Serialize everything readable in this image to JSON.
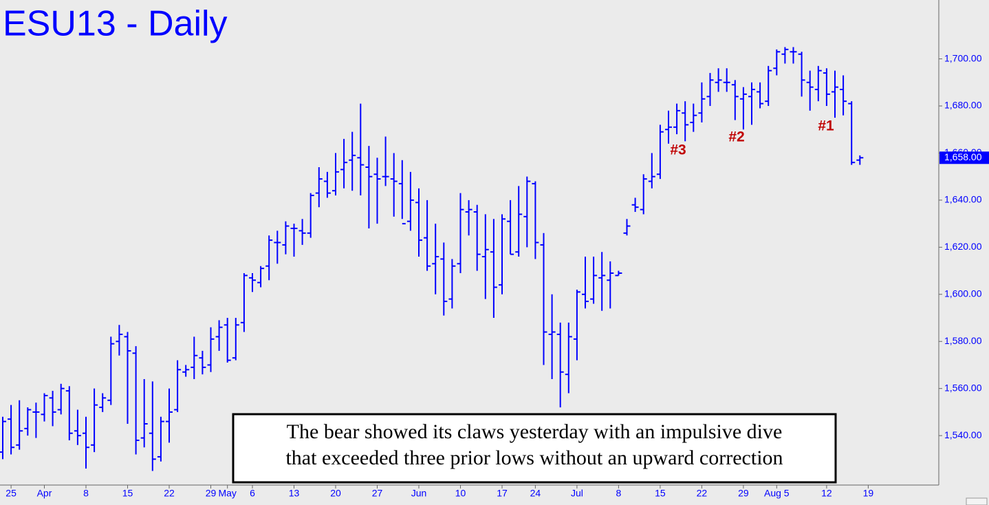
{
  "chart_data": {
    "type": "ohlc",
    "title": "ESU13 - Daily",
    "color": "#0000ff",
    "categories": [
      null,
      "25",
      null,
      null,
      null,
      "Apr",
      null,
      null,
      null,
      null,
      "8",
      null,
      null,
      null,
      null,
      "15",
      null,
      null,
      null,
      null,
      "22",
      null,
      null,
      null,
      null,
      "29",
      null,
      "May",
      null,
      null,
      "6",
      null,
      null,
      null,
      null,
      "13",
      null,
      null,
      null,
      null,
      "20",
      null,
      null,
      null,
      null,
      "27",
      null,
      null,
      null,
      null,
      "Jun",
      null,
      null,
      null,
      null,
      "10",
      null,
      null,
      null,
      null,
      "17",
      null,
      null,
      null,
      "24",
      null,
      null,
      null,
      null,
      "Jul",
      null,
      null,
      null,
      null,
      "8",
      null,
      null,
      null,
      null,
      "15",
      null,
      null,
      null,
      null,
      "22",
      null,
      null,
      null,
      null,
      "29",
      null,
      null,
      null,
      "Aug 5",
      null,
      null,
      null,
      null,
      null,
      "12",
      null,
      null,
      null,
      null,
      "19"
    ],
    "open": [
      1533,
      1547,
      1536,
      1543,
      1550,
      1549,
      1556,
      1551,
      1559,
      1542,
      1541,
      1536,
      1552,
      1555,
      1580,
      1582,
      1575,
      1539,
      1541,
      1531,
      1546,
      1551,
      1567,
      1569,
      1573,
      1570,
      1582,
      1587,
      1573,
      1588,
      1607,
      1605,
      1612,
      1622,
      1621,
      1628,
      1627,
      1626,
      1643,
      1648,
      1644,
      1653,
      1657,
      1658,
      1654,
      1651,
      1650,
      1649,
      1647,
      1631,
      1639,
      1624,
      1613,
      1615,
      1598,
      1613,
      1635,
      1635,
      1616,
      1618,
      1604,
      1631,
      1618,
      1633,
      1647,
      1621,
      1583,
      1583,
      1566,
      1581,
      1600,
      1598,
      1607,
      1606,
      1608,
      1626,
      1638,
      1636,
      1648,
      1651,
      1670,
      1671,
      1677,
      1673,
      1677,
      1684,
      1690,
      1690,
      1689,
      1683,
      1684,
      1686,
      1682,
      1696,
      1702,
      1703,
      1702,
      1690,
      1687,
      1694,
      1686,
      1687,
      1681,
      1657,
      null
    ],
    "high": [
      1548,
      1553,
      1555,
      1552,
      1554,
      1558,
      1559,
      1562,
      1561,
      1551,
      1548,
      1560,
      1558,
      1582,
      1587,
      1584,
      1578,
      1564,
      1563,
      1548,
      1560,
      1572,
      1570,
      1582,
      1576,
      1586,
      1589,
      1590,
      1590,
      1609,
      1609,
      1612,
      1625,
      1627,
      1631,
      1630,
      1632,
      1643,
      1654,
      1652,
      1660,
      1666,
      1669,
      1681,
      1663,
      1658,
      1667,
      1660,
      1657,
      1652,
      1645,
      1640,
      1630,
      1622,
      1615,
      1643,
      1640,
      1638,
      1634,
      1632,
      1634,
      1640,
      1646,
      1650,
      1648,
      1626,
      1600,
      1588,
      1588,
      1602,
      1616,
      1616,
      1618,
      1614,
      1610,
      1632,
      1641,
      1651,
      1660,
      1672,
      1678,
      1681,
      1682,
      1681,
      1690,
      1694,
      1696,
      1696,
      1691,
      1688,
      1690,
      1690,
      1697,
      1704,
      1705,
      1705,
      1703,
      1695,
      1697,
      1696,
      1695,
      1693,
      1682,
      1659,
      null
    ],
    "low": [
      1530,
      1532,
      1534,
      1540,
      1539,
      1546,
      1544,
      1549,
      1538,
      1536,
      1526,
      1533,
      1550,
      1553,
      1574,
      1545,
      1532,
      1535,
      1525,
      1529,
      1537,
      1550,
      1565,
      1564,
      1566,
      1567,
      1576,
      1571,
      1572,
      1584,
      1601,
      1603,
      1606,
      1613,
      1617,
      1616,
      1621,
      1624,
      1637,
      1641,
      1642,
      1645,
      1644,
      1642,
      1628,
      1630,
      1646,
      1633,
      1632,
      1627,
      1616,
      1610,
      1600,
      1591,
      1594,
      1609,
      1625,
      1610,
      1598,
      1590,
      1600,
      1617,
      1616,
      1620,
      1615,
      1570,
      1564,
      1552,
      1558,
      1572,
      1594,
      1596,
      1593,
      1594,
      1608,
      1625,
      1635,
      1634,
      1645,
      1649,
      1664,
      1668,
      1665,
      1669,
      1673,
      1680,
      1686,
      1686,
      1674,
      1670,
      1672,
      1679,
      1680,
      1693,
      1698,
      1698,
      1684,
      1678,
      1682,
      1680,
      1675,
      1676,
      1655,
      1655,
      null
    ],
    "close": [
      1546,
      1535,
      1542,
      1551,
      1550,
      1557,
      1550,
      1560,
      1541,
      1540,
      1535,
      1553,
      1556,
      1579,
      1583,
      1576,
      1538,
      1545,
      1530,
      1546,
      1550,
      1568,
      1568,
      1574,
      1569,
      1581,
      1586,
      1572,
      1587,
      1608,
      1606,
      1611,
      1623,
      1622,
      1629,
      1628,
      1626,
      1642,
      1649,
      1643,
      1652,
      1656,
      1659,
      1655,
      1650,
      1649,
      1650,
      1648,
      1630,
      1640,
      1623,
      1612,
      1616,
      1597,
      1612,
      1636,
      1636,
      1617,
      1619,
      1603,
      1632,
      1617,
      1634,
      1648,
      1622,
      1584,
      1584,
      1567,
      1582,
      1601,
      1597,
      1608,
      1608,
      1609,
      1609,
      1629,
      1637,
      1649,
      1650,
      1669,
      1671,
      1678,
      1672,
      1676,
      1683,
      1691,
      1691,
      1690,
      1684,
      1685,
      1687,
      1681,
      1695,
      1703,
      1704,
      1703,
      1691,
      1688,
      1695,
      1685,
      1688,
      1682,
      1656,
      1658,
      null
    ],
    "ylim": [
      1519,
      1725
    ],
    "yticks": [
      {
        "value": 1540,
        "label": "1,540.00"
      },
      {
        "value": 1560,
        "label": "1,560.00"
      },
      {
        "value": 1580,
        "label": "1,580.00"
      },
      {
        "value": 1600,
        "label": "1,600.00"
      },
      {
        "value": 1620,
        "label": "1,620.00"
      },
      {
        "value": 1640,
        "label": "1,640.00"
      },
      {
        "value": 1660,
        "label": "1,660.00"
      },
      {
        "value": 1680,
        "label": "1,680.00"
      },
      {
        "value": 1700,
        "label": "1,700.00"
      }
    ],
    "last_price": {
      "value": 1658,
      "label": "1,658.00"
    },
    "annotations": [
      {
        "text": "#3"
      },
      {
        "text": "#2"
      },
      {
        "text": "#1"
      }
    ],
    "note": [
      "The bear showed its claws yesterday with an impulsive dive",
      "that exceeded three prior lows without an upward correction"
    ]
  }
}
